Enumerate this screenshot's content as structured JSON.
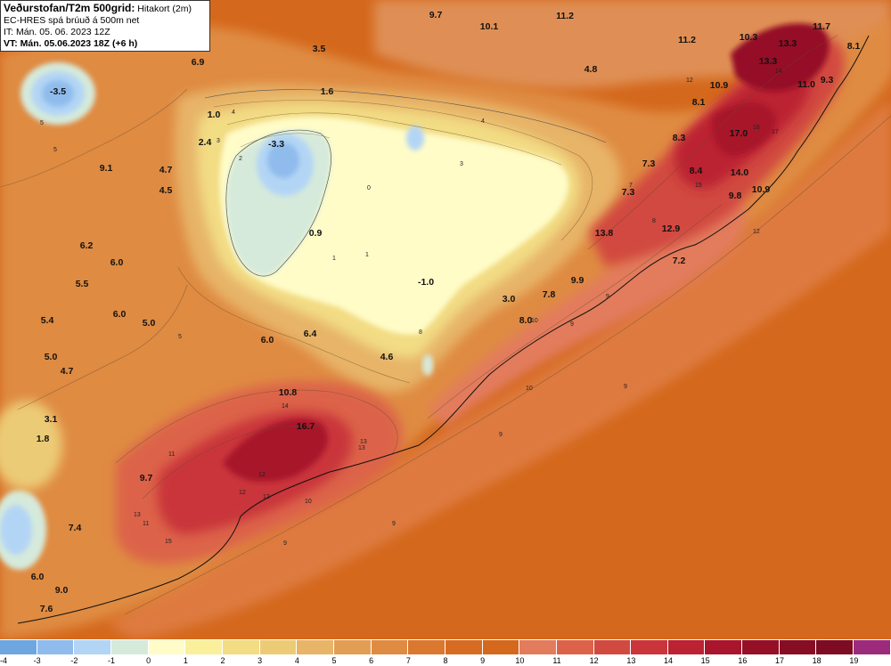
{
  "header": {
    "title_bold": "Veðurstofan/T2m 500grid:",
    "title_rest": " Hitakort (2m)",
    "model_line": "EC-HRES spá brúuð á 500m net",
    "init_line": "IT: Mán. 05. 06. 2023 12Z",
    "valid_line": "VT: Mán. 05.06.2023 18Z (+6 h)"
  },
  "map_values": [
    "-3.5",
    "6.9",
    "3.5",
    "1.6",
    "1.0",
    "2.4",
    "-3.3",
    "9.1",
    "4.7",
    "4.5",
    "0.9",
    "6.2",
    "6.0",
    "5.5",
    "5.4",
    "6.0",
    "5.0",
    "5.0",
    "4.7",
    "6.0",
    "6.4",
    "4.6",
    "-1.0",
    "3.0",
    "7.8",
    "8.0",
    "9.9",
    "10.8",
    "16.7",
    "3.1",
    "1.8",
    "9.7",
    "7.4",
    "6.0",
    "9.0",
    "7.6",
    "9.7",
    "10.1",
    "11.2",
    "11.2",
    "10.3",
    "13.3",
    "11.7",
    "8.1",
    "4.8",
    "13.3",
    "11.0",
    "9.3",
    "10.9",
    "8.1",
    "8.3",
    "17.0",
    "7.3",
    "8.4",
    "14.0",
    "7.3",
    "9.8",
    "10.9",
    "13.8",
    "12.9",
    "7.2"
  ],
  "contour_labels": [
    "5",
    "5",
    "5",
    "4",
    "3",
    "2",
    "1",
    "0",
    "1",
    "4",
    "3",
    "7",
    "8",
    "11",
    "12",
    "13",
    "13",
    "14",
    "12",
    "10",
    "9",
    "9",
    "9",
    "9",
    "8",
    "9",
    "14",
    "16",
    "17",
    "15",
    "12",
    "12",
    "10",
    "10",
    "9",
    "11",
    "13",
    "15",
    "12"
  ],
  "legend": {
    "labels": [
      "-4",
      "-3",
      "-2",
      "-1",
      "0",
      "1",
      "2",
      "3",
      "4",
      "5",
      "6",
      "7",
      "8",
      "9",
      "10",
      "11",
      "12",
      "13",
      "14",
      "15",
      "16",
      "17",
      "18",
      "19"
    ],
    "colors": [
      "#6ea6e0",
      "#8fbcec",
      "#b3d5f5",
      "#d5eadb",
      "#fffcc8",
      "#faf09c",
      "#f2dc84",
      "#eccb76",
      "#e7b468",
      "#e39e55",
      "#df8b42",
      "#da7830",
      "#d66c22",
      "#d4681c",
      "#e27c5d",
      "#dc6349",
      "#d14a40",
      "#c9353a",
      "#bb2232",
      "#a8152c",
      "#951027",
      "#870d24",
      "#7d0b22",
      "#9c2b7c"
    ]
  }
}
